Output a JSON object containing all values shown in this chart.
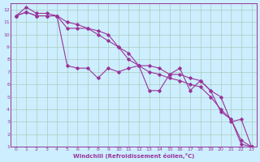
{
  "xlabel": "Windchill (Refroidissement éolien,°C)",
  "background_color": "#cceeff",
  "grid_color": "#aaccbb",
  "line_color": "#993399",
  "xlim": [
    -0.5,
    23.5
  ],
  "ylim": [
    1,
    12.5
  ],
  "xtick_labels": [
    "0",
    "1",
    "2",
    "3",
    "4",
    "5",
    "6",
    "7",
    "8",
    "9",
    "10",
    "11",
    "12",
    "13",
    "14",
    "15",
    "16",
    "17",
    "18",
    "19",
    "20",
    "21",
    "22",
    "23"
  ],
  "ytick_labels": [
    "1",
    "2",
    "3",
    "4",
    "5",
    "6",
    "7",
    "8",
    "9",
    "10",
    "11",
    "12"
  ],
  "series": [
    {
      "x": [
        0,
        1,
        2,
        3,
        4,
        5,
        6,
        7,
        8,
        9,
        10,
        11,
        12,
        13,
        14,
        15,
        16,
        17,
        18,
        19,
        20,
        21,
        22,
        23
      ],
      "y": [
        11.5,
        12.2,
        11.7,
        11.7,
        11.5,
        7.5,
        7.3,
        7.3,
        6.5,
        7.3,
        7.0,
        7.3,
        7.5,
        7.5,
        7.3,
        6.8,
        6.8,
        6.5,
        6.3,
        5.5,
        3.8,
        3.2,
        1.2,
        1.0
      ]
    },
    {
      "x": [
        0,
        1,
        2,
        3,
        4,
        5,
        6,
        7,
        8,
        9,
        10,
        11,
        12,
        13,
        14,
        15,
        16,
        17,
        18,
        19,
        20,
        21,
        22,
        23
      ],
      "y": [
        11.5,
        11.8,
        11.5,
        11.5,
        11.5,
        10.5,
        10.5,
        10.5,
        10.3,
        10.0,
        9.0,
        8.0,
        7.5,
        5.5,
        5.5,
        6.8,
        7.3,
        5.5,
        6.3,
        5.5,
        5.0,
        3.0,
        3.2,
        1.0
      ]
    },
    {
      "x": [
        0,
        1,
        2,
        3,
        4,
        5,
        6,
        7,
        8,
        9,
        10,
        11,
        12,
        13,
        14,
        15,
        16,
        17,
        18,
        19,
        20,
        21,
        22,
        23
      ],
      "y": [
        11.5,
        11.8,
        11.5,
        11.5,
        11.5,
        11.0,
        10.8,
        10.5,
        10.0,
        9.5,
        9.0,
        8.5,
        7.5,
        7.0,
        6.8,
        6.5,
        6.3,
        6.0,
        5.8,
        5.0,
        4.0,
        3.2,
        1.5,
        1.0
      ]
    }
  ]
}
